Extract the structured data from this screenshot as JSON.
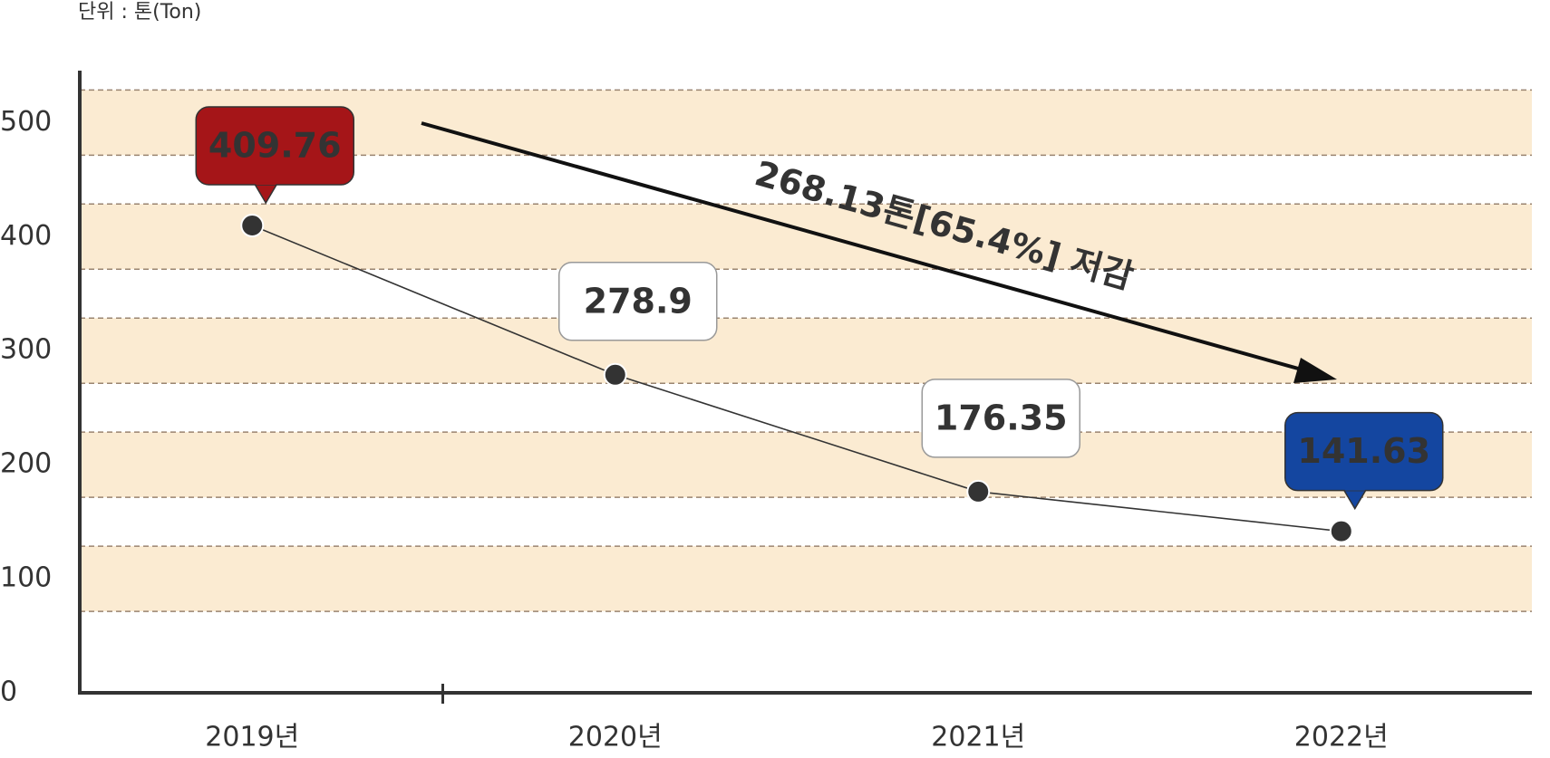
{
  "unit_label": "단위 : 톤(Ton)",
  "chart_data": {
    "type": "line",
    "categories": [
      "2019년",
      "2020년",
      "2021년",
      "2022년"
    ],
    "values": [
      409.76,
      278.9,
      176.35,
      141.63
    ],
    "ylim": [
      0,
      540
    ],
    "yticks": [
      0,
      100,
      200,
      300,
      400,
      500
    ],
    "color": "#333333",
    "band_color": "#fbebd2",
    "label_colors": [
      "#a51518",
      "#ffffff",
      "#ffffff",
      "#1446a0"
    ],
    "annotation": "268.13톤[65.4%] 저감",
    "annotation_color": "#a51518"
  }
}
